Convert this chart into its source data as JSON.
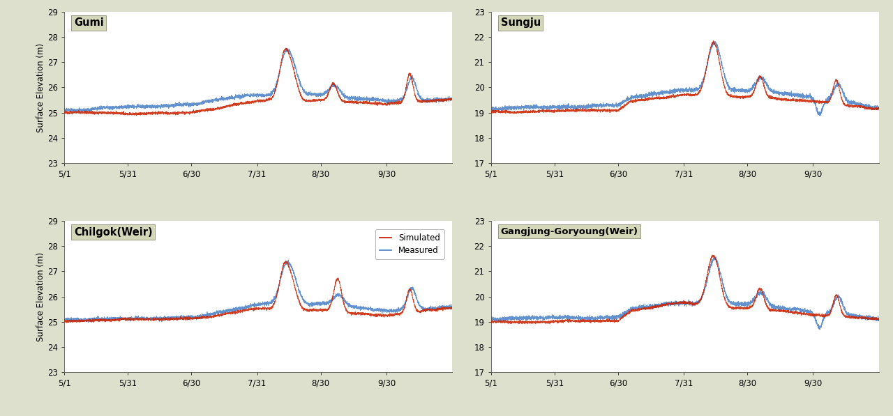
{
  "background_color": "#dde0cc",
  "plot_bg_color": "#ffffff",
  "fig_width": 12.8,
  "fig_height": 5.97,
  "panels": [
    {
      "title": "Gumi",
      "ylim": [
        23,
        29
      ],
      "yticks": [
        23,
        24,
        25,
        26,
        27,
        28,
        29
      ],
      "base_sim": 25.02,
      "base_meas": 25.1,
      "show_legend": false,
      "row": 0,
      "col": 0
    },
    {
      "title": "Sungju",
      "ylim": [
        17,
        23
      ],
      "yticks": [
        17,
        18,
        19,
        20,
        21,
        22,
        23
      ],
      "base_sim": 19.05,
      "base_meas": 19.15,
      "show_legend": false,
      "row": 0,
      "col": 1
    },
    {
      "title": "Chilgok(Weir)",
      "ylim": [
        23,
        29
      ],
      "yticks": [
        23,
        24,
        25,
        26,
        27,
        28,
        29
      ],
      "base_sim": 25.02,
      "base_meas": 25.1,
      "show_legend": true,
      "row": 1,
      "col": 0
    },
    {
      "title": "Gangjung-Goryoung(Weir)",
      "ylim": [
        17,
        23
      ],
      "yticks": [
        17,
        18,
        19,
        20,
        21,
        22,
        23
      ],
      "base_sim": 19.0,
      "base_meas": 19.1,
      "show_legend": false,
      "row": 1,
      "col": 1
    }
  ],
  "xtick_positions": [
    0,
    30,
    60,
    91,
    121,
    152
  ],
  "xtick_labels": [
    "5/1",
    "5/31",
    "6/30",
    "7/31",
    "8/30",
    "9/30"
  ],
  "simulated_color": "#cc2200",
  "measured_color": "#5588cc",
  "ylabel": "Surface Elevation (m)",
  "n_points": 4416,
  "total_days": 183
}
